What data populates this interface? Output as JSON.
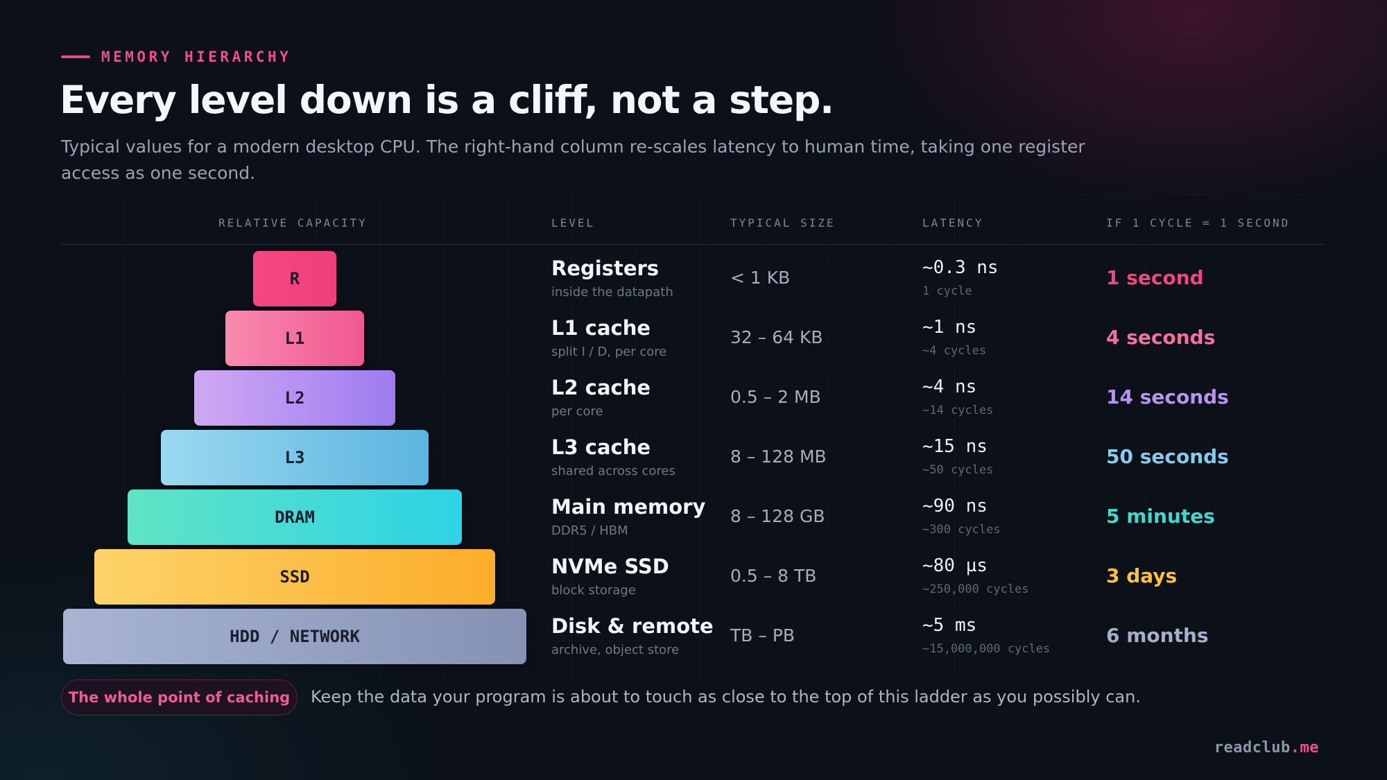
{
  "eyebrow": "MEMORY HIERARCHY",
  "headline": "Every level down is a cliff, not a step.",
  "subtitle": "Typical values for a modern desktop CPU. The right-hand column re-scales latency to human time, taking one register access as one second.",
  "columns": {
    "capacity": "RELATIVE CAPACITY",
    "level": "LEVEL",
    "size": "TYPICAL SIZE",
    "latency": "LATENCY",
    "human": "IF 1 CYCLE = 1 SECOND"
  },
  "levels": [
    {
      "block": "R",
      "name": "Registers",
      "desc": "inside the datapath",
      "size": "< 1 KB",
      "latency": "~0.3 ns",
      "cycles": "1 cycle",
      "human": "1 second",
      "color": "#f2467e"
    },
    {
      "block": "L1",
      "name": "L1 cache",
      "desc": "split I / D, per core",
      "size": "32 – 64 KB",
      "latency": "~1 ns",
      "cycles": "~4 cycles",
      "human": "4 seconds",
      "color": "#f56f9f"
    },
    {
      "block": "L2",
      "name": "L2 cache",
      "desc": "per core",
      "size": "0.5 – 2 MB",
      "latency": "~4 ns",
      "cycles": "~14 cycles",
      "human": "14 seconds",
      "color": "#b893f2"
    },
    {
      "block": "L3",
      "name": "L3 cache",
      "desc": "shared across cores",
      "size": "8 – 128 MB",
      "latency": "~15 ns",
      "cycles": "~50 cycles",
      "human": "50 seconds",
      "color": "#84cbec"
    },
    {
      "block": "DRAM",
      "name": "Main memory",
      "desc": "DDR5 / HBM",
      "size": "8 – 128 GB",
      "latency": "~90 ns",
      "cycles": "~300 cycles",
      "human": "5 minutes",
      "color": "#3fd9cd"
    },
    {
      "block": "SSD",
      "name": "NVMe SSD",
      "desc": "block storage",
      "size": "0.5 – 8 TB",
      "latency": "~80 µs",
      "cycles": "~250,000 cycles",
      "human": "3 days",
      "color": "#fcc03e"
    },
    {
      "block": "HDD / NETWORK",
      "name": "Disk & remote",
      "desc": "archive, object store",
      "size": "TB – PB",
      "latency": "~5 ms",
      "cycles": "~15,000,000 cycles",
      "human": "6 months",
      "color": "#a6b0c8"
    }
  ],
  "callout": {
    "pill": "The whole point of caching",
    "text": "Keep the data your program is about to touch as close to the top of this ladder as you possibly can."
  },
  "brand": {
    "name": "readclub",
    "tld": ".me"
  }
}
